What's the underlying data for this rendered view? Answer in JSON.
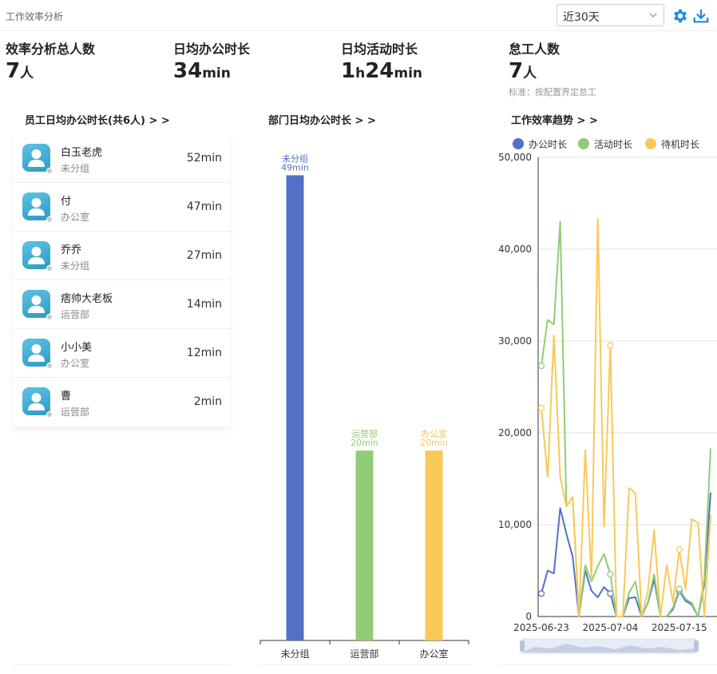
{
  "header": {
    "title": "工作效率分析",
    "range_value": "近30天"
  },
  "stats": [
    {
      "label": "效率分析总人数",
      "num1": "7",
      "unit1": "人"
    },
    {
      "label": "日均办公时长",
      "num1": "34",
      "unit1": "min"
    },
    {
      "label": "日均活动时长",
      "num1": "1",
      "unit1": "h",
      "num2": "24",
      "unit2": "min"
    },
    {
      "label": "怠工人数",
      "num1": "7",
      "unit1": "人",
      "note": "标准：按配置界定怠工"
    }
  ],
  "employees": {
    "title": "员工日均办公时长(共6人) > >",
    "items": [
      {
        "name": "白玉老虎",
        "dept": "未分组",
        "time": "52min"
      },
      {
        "name": "付",
        "dept": "办公室",
        "time": "47min"
      },
      {
        "name": "乔乔",
        "dept": "未分组",
        "time": "27min"
      },
      {
        "name": "痞帅大老板",
        "dept": "运营部",
        "time": "14min"
      },
      {
        "name": "小小美",
        "dept": "办公室",
        "time": "12min"
      },
      {
        "name": "曹",
        "dept": "运营部",
        "time": "2min"
      }
    ]
  },
  "department_panel": {
    "title": "部门日均办公时长 > >"
  },
  "trend_panel": {
    "title": "工作效率趋势 > >"
  },
  "chart_data": [
    {
      "type": "bar",
      "categories": [
        "未分组",
        "运营部",
        "办公室"
      ],
      "values": [
        49,
        20,
        20
      ],
      "value_labels": [
        "49min",
        "20min",
        "20min"
      ],
      "colors": [
        "#5470c6",
        "#91cc75",
        "#fac858"
      ],
      "ylim": [
        0,
        54
      ]
    },
    {
      "type": "line",
      "legend": [
        "办公时长",
        "活动时长",
        "待机时长"
      ],
      "legend_position": "top",
      "colors": [
        "#5470c6",
        "#91cc75",
        "#fac858"
      ],
      "x_tick_labels": [
        "2025-06-23",
        "2025-07-04",
        "2025-07-15"
      ],
      "y_ticks": [
        "0",
        "10,000",
        "20,000",
        "30,000",
        "40,000",
        "50,000"
      ],
      "ylim": [
        0,
        50000
      ],
      "grid": "horizontal",
      "series": [
        {
          "name": "办公时长",
          "values": [
            2500,
            5000,
            4700,
            11800,
            9000,
            6500,
            0,
            5000,
            2800,
            2100,
            3200,
            2500,
            0,
            0,
            2000,
            2100,
            0,
            1500,
            4000,
            0,
            0,
            800,
            2800,
            1700,
            1300,
            0,
            3500,
            13500
          ]
        },
        {
          "name": "活动时长",
          "values": [
            27300,
            32300,
            31800,
            43000,
            12000,
            13000,
            0,
            5600,
            3800,
            5500,
            6800,
            4600,
            0,
            0,
            2600,
            3800,
            0,
            1600,
            4600,
            0,
            0,
            1000,
            3000,
            1900,
            1500,
            0,
            4000,
            18300
          ]
        },
        {
          "name": "待机时长",
          "values": [
            22700,
            15200,
            30600,
            15200,
            12000,
            13000,
            0,
            18100,
            4000,
            43300,
            9800,
            29500,
            0,
            0,
            14000,
            13400,
            0,
            2800,
            9400,
            0,
            5600,
            1500,
            7300,
            3000,
            10600,
            10200,
            0,
            11000
          ]
        }
      ]
    }
  ]
}
